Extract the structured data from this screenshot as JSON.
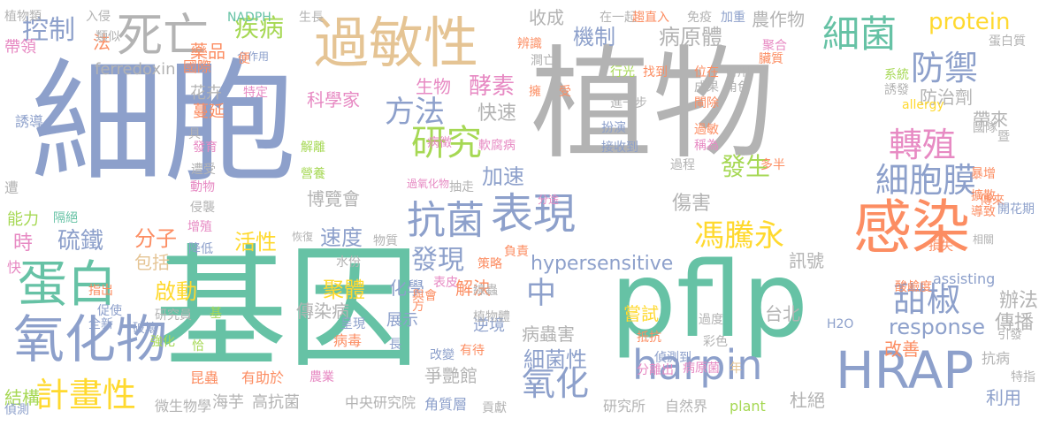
{
  "colors": {
    "purple": "#8da0cb",
    "gray": "#b3b3b3",
    "green": "#66c2a5",
    "orange": "#fc8d62",
    "tan": "#e5c494",
    "pink": "#e78ac3",
    "lime": "#a6d854",
    "yellow": "#ffd92f"
  },
  "words": [
    {
      "text": "細胞",
      "color": "purple"
    },
    {
      "text": "植物",
      "color": "gray"
    },
    {
      "text": "基因",
      "color": "green"
    },
    {
      "text": "pflp",
      "color": "green"
    },
    {
      "text": "過敏性",
      "color": "tan"
    },
    {
      "text": "感染",
      "color": "orange"
    },
    {
      "text": "HRAP",
      "color": "purple"
    },
    {
      "text": "蛋白",
      "color": "green"
    },
    {
      "text": "氧化物",
      "color": "purple"
    },
    {
      "text": "死亡",
      "color": "gray"
    },
    {
      "text": "表現",
      "color": "purple"
    },
    {
      "text": "抗菌",
      "color": "purple"
    },
    {
      "text": "細菌",
      "color": "green"
    },
    {
      "text": "防禦",
      "color": "purple"
    },
    {
      "text": "轉殖",
      "color": "pink"
    },
    {
      "text": "細胞膜",
      "color": "purple"
    },
    {
      "text": "甜椒",
      "color": "purple"
    },
    {
      "text": "harpin",
      "color": "purple"
    },
    {
      "text": "計畫性",
      "color": "yellow"
    },
    {
      "text": "氧化",
      "color": "purple"
    },
    {
      "text": "研究",
      "color": "lime"
    },
    {
      "text": "方法",
      "color": "purple"
    },
    {
      "text": "馮騰永",
      "color": "yellow"
    },
    {
      "text": "控制",
      "color": "purple"
    },
    {
      "text": "疾病",
      "color": "lime"
    },
    {
      "text": "protein",
      "color": "yellow"
    },
    {
      "text": "發現",
      "color": "purple"
    },
    {
      "text": "中",
      "color": "purple"
    },
    {
      "text": "硫鐵",
      "color": "purple"
    },
    {
      "text": "response",
      "color": "purple"
    },
    {
      "text": "hypersensitive",
      "color": "purple"
    },
    {
      "text": "速度",
      "color": "purple"
    },
    {
      "text": "聚體",
      "color": "yellow"
    },
    {
      "text": "發生",
      "color": "lime"
    },
    {
      "text": "加速",
      "color": "purple"
    },
    {
      "text": "酵素",
      "color": "pink"
    },
    {
      "text": "細菌性",
      "color": "purple"
    },
    {
      "text": "機制",
      "color": "purple"
    },
    {
      "text": "病原體",
      "color": "gray"
    },
    {
      "text": "農作物",
      "color": "gray"
    },
    {
      "text": "收成",
      "color": "gray"
    },
    {
      "text": "快速",
      "color": "gray"
    },
    {
      "text": "生物",
      "color": "pink"
    },
    {
      "text": "分子",
      "color": "orange"
    },
    {
      "text": "活性",
      "color": "yellow"
    },
    {
      "text": "啟動",
      "color": "yellow"
    },
    {
      "text": "傳染病",
      "color": "gray"
    },
    {
      "text": "病蟲害",
      "color": "gray"
    },
    {
      "text": "傷害",
      "color": "gray"
    },
    {
      "text": "防治劑",
      "color": "gray"
    },
    {
      "text": "帶來",
      "color": "gray"
    },
    {
      "text": "訊號",
      "color": "gray"
    },
    {
      "text": "辦法",
      "color": "gray"
    },
    {
      "text": "傳播",
      "color": "gray"
    },
    {
      "text": "改善",
      "color": "orange"
    },
    {
      "text": "利用",
      "color": "purple"
    },
    {
      "text": "杜絕",
      "color": "gray"
    },
    {
      "text": "嘗試",
      "color": "yellow"
    },
    {
      "text": "台北",
      "color": "gray"
    },
    {
      "text": "解決",
      "color": "orange"
    },
    {
      "text": "化學",
      "color": "purple"
    },
    {
      "text": "爭艷館",
      "color": "gray"
    },
    {
      "text": "展示",
      "color": "purple"
    },
    {
      "text": "逆境",
      "color": "purple"
    },
    {
      "text": "藥品",
      "color": "orange"
    },
    {
      "text": "法",
      "color": "orange"
    },
    {
      "text": "國際",
      "color": "orange"
    },
    {
      "text": "花卉",
      "color": "gray"
    },
    {
      "text": "蔓延",
      "color": "orange"
    },
    {
      "text": "科學家",
      "color": "pink"
    },
    {
      "text": "博覽會",
      "color": "gray"
    },
    {
      "text": "包括",
      "color": "tan"
    },
    {
      "text": "時",
      "color": "pink"
    },
    {
      "text": "ferredoxin",
      "color": "gray"
    },
    {
      "text": "海芋",
      "color": "gray"
    },
    {
      "text": "高抗菌",
      "color": "gray"
    },
    {
      "text": "中央研究院",
      "color": "gray"
    },
    {
      "text": "角質層",
      "color": "purple"
    },
    {
      "text": "研究所",
      "color": "gray"
    },
    {
      "text": "自然界",
      "color": "gray"
    },
    {
      "text": "plant",
      "color": "lime"
    },
    {
      "text": "微生物學",
      "color": "gray"
    },
    {
      "text": "昆蟲",
      "color": "orange"
    },
    {
      "text": "有助於",
      "color": "orange"
    },
    {
      "text": "農業",
      "color": "pink"
    },
    {
      "text": "結構",
      "color": "lime"
    },
    {
      "text": "偵測",
      "color": "purple"
    },
    {
      "text": "特指",
      "color": "gray"
    },
    {
      "text": "抗病",
      "color": "gray"
    },
    {
      "text": "引發",
      "color": "gray"
    },
    {
      "text": "assisting",
      "color": "purple"
    },
    {
      "text": "酸鹼度",
      "color": "orange"
    },
    {
      "text": "植物類",
      "color": "gray"
    },
    {
      "text": "入侵",
      "color": "gray"
    },
    {
      "text": "類似",
      "color": "gray"
    },
    {
      "text": "帶領",
      "color": "pink"
    },
    {
      "text": "誘導",
      "color": "purple"
    },
    {
      "text": "遭",
      "color": "gray"
    },
    {
      "text": "能力",
      "color": "lime"
    },
    {
      "text": "快",
      "color": "pink"
    },
    {
      "text": "隔絕",
      "color": "green"
    },
    {
      "text": "NADPH",
      "color": "green"
    },
    {
      "text": "生長",
      "color": "gray"
    },
    {
      "text": "合作用",
      "color": "purple"
    },
    {
      "text": "在一起",
      "color": "gray"
    },
    {
      "text": "趨直入",
      "color": "orange"
    },
    {
      "text": "免疫",
      "color": "gray"
    },
    {
      "text": "加重",
      "color": "purple"
    },
    {
      "text": "蛋白質",
      "color": "gray"
    },
    {
      "text": "聚合",
      "color": "pink"
    },
    {
      "text": "臟質",
      "color": "orange"
    },
    {
      "text": "系統",
      "color": "lime"
    },
    {
      "text": "誘發",
      "color": "gray"
    },
    {
      "text": "allergy",
      "color": "yellow"
    },
    {
      "text": "國隊",
      "color": "gray"
    },
    {
      "text": "暨",
      "color": "gray"
    },
    {
      "text": "暴增",
      "color": "orange"
    },
    {
      "text": "擴散",
      "color": "orange"
    },
    {
      "text": "導致",
      "color": "orange"
    },
    {
      "text": "傳來",
      "color": "orange"
    },
    {
      "text": "開花期",
      "color": "purple"
    },
    {
      "text": "相關",
      "color": "gray"
    },
    {
      "text": "損失",
      "color": "orange"
    },
    {
      "text": "多半",
      "color": "orange"
    },
    {
      "text": "負責",
      "color": "orange"
    },
    {
      "text": "策略",
      "color": "orange"
    },
    {
      "text": "線蟲",
      "color": "gray"
    },
    {
      "text": "表皮",
      "color": "pink"
    },
    {
      "text": "植物體",
      "color": "gray"
    },
    {
      "text": "有待",
      "color": "orange"
    },
    {
      "text": "改變",
      "color": "purple"
    },
    {
      "text": "長",
      "color": "purple"
    },
    {
      "text": "病毒",
      "color": "orange"
    },
    {
      "text": "呈現",
      "color": "purple"
    },
    {
      "text": "恰",
      "color": "lime"
    },
    {
      "text": "強化",
      "color": "lime"
    },
    {
      "text": "破壞",
      "color": "purple"
    },
    {
      "text": "全新",
      "color": "purple"
    },
    {
      "text": "促使",
      "color": "purple"
    },
    {
      "text": "指出",
      "color": "orange"
    },
    {
      "text": "研究員",
      "color": "gray"
    },
    {
      "text": "基",
      "color": "lime"
    },
    {
      "text": "水份",
      "color": "gray"
    },
    {
      "text": "與會",
      "color": "orange"
    },
    {
      "text": "方",
      "color": "orange"
    },
    {
      "text": "過氧化物",
      "color": "pink"
    },
    {
      "text": "抽走",
      "color": "gray"
    },
    {
      "text": "分途",
      "color": "pink"
    },
    {
      "text": "物質",
      "color": "gray"
    },
    {
      "text": "恢復",
      "color": "gray"
    },
    {
      "text": "營養",
      "color": "lime"
    },
    {
      "text": "解離",
      "color": "lime"
    },
    {
      "text": "軟腐病",
      "color": "pink"
    },
    {
      "text": "病徵",
      "color": "pink"
    },
    {
      "text": "行光",
      "color": "lime"
    },
    {
      "text": "找到",
      "color": "orange"
    },
    {
      "text": "位在",
      "color": "orange"
    },
    {
      "text": "成果",
      "color": "gray"
    },
    {
      "text": "閘除",
      "color": "orange"
    },
    {
      "text": "角色",
      "color": "gray"
    },
    {
      "text": "可用",
      "color": "gray"
    },
    {
      "text": "進一步",
      "color": "gray"
    },
    {
      "text": "接收到",
      "color": "purple"
    },
    {
      "text": "扮演",
      "color": "purple"
    },
    {
      "text": "過敏",
      "color": "orange"
    },
    {
      "text": "稱為",
      "color": "pink"
    },
    {
      "text": "過程",
      "color": "gray"
    },
    {
      "text": "受",
      "color": "orange"
    },
    {
      "text": "擁",
      "color": "orange"
    },
    {
      "text": "澗亡",
      "color": "gray"
    },
    {
      "text": "辨識",
      "color": "orange"
    },
    {
      "text": "便",
      "color": "orange"
    },
    {
      "text": "特定",
      "color": "pink"
    },
    {
      "text": "降低",
      "color": "purple"
    },
    {
      "text": "增殖",
      "color": "pink"
    },
    {
      "text": "侵襲",
      "color": "gray"
    },
    {
      "text": "動物",
      "color": "pink"
    },
    {
      "text": "遭受",
      "color": "gray"
    },
    {
      "text": "發育",
      "color": "pink"
    },
    {
      "text": "具",
      "color": "gray"
    },
    {
      "text": "彩色",
      "color": "gray"
    },
    {
      "text": "過度",
      "color": "gray"
    },
    {
      "text": "抵抗",
      "color": "orange"
    },
    {
      "text": "偵測到",
      "color": "purple"
    },
    {
      "text": "病原菌",
      "color": "pink"
    },
    {
      "text": "年",
      "color": "tan"
    },
    {
      "text": "H2O",
      "color": "purple"
    },
    {
      "text": "分離出",
      "color": "pink"
    },
    {
      "text": "貢獻",
      "color": "gray"
    }
  ]
}
